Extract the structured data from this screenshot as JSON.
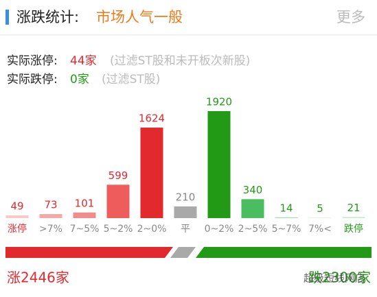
{
  "header": {
    "title": "涨跌统计:",
    "sentiment": "市场人气一般",
    "more": "更多"
  },
  "stats": [
    {
      "label": "实际涨停:",
      "value": "44家",
      "note": "(过滤ST股和未开板次新股)"
    },
    {
      "label": "实际跌停:",
      "value": "0家",
      "note": "(过滤ST股)"
    }
  ],
  "chart_data": {
    "type": "bar",
    "categories": [
      "涨停",
      ">7%",
      "7~5%",
      "5~2%",
      "2~0%",
      "平",
      "0~2%",
      "2~5%",
      "5~7%",
      "7%<",
      "跌停"
    ],
    "values": [
      49,
      73,
      101,
      599,
      1624,
      210,
      1920,
      340,
      14,
      5,
      21
    ],
    "colors": [
      "#f7c9c9",
      "#f4a9a9",
      "#f08c8c",
      "#ee5c5c",
      "#e2292e",
      "#a9a9a9",
      "#229a15",
      "#49bd5f",
      "#9fdca8",
      "#b9e6be",
      "#c9ecc9"
    ],
    "label_colors": [
      "#e2292e",
      "#e2292e",
      "#e2292e",
      "#e2292e",
      "#e2292e",
      "#888888",
      "#229a15",
      "#229a15",
      "#229a15",
      "#229a15",
      "#229a15"
    ]
  },
  "summary": {
    "up": "涨2446家",
    "down": "跌2300家"
  },
  "watermark": "超级短线网店"
}
